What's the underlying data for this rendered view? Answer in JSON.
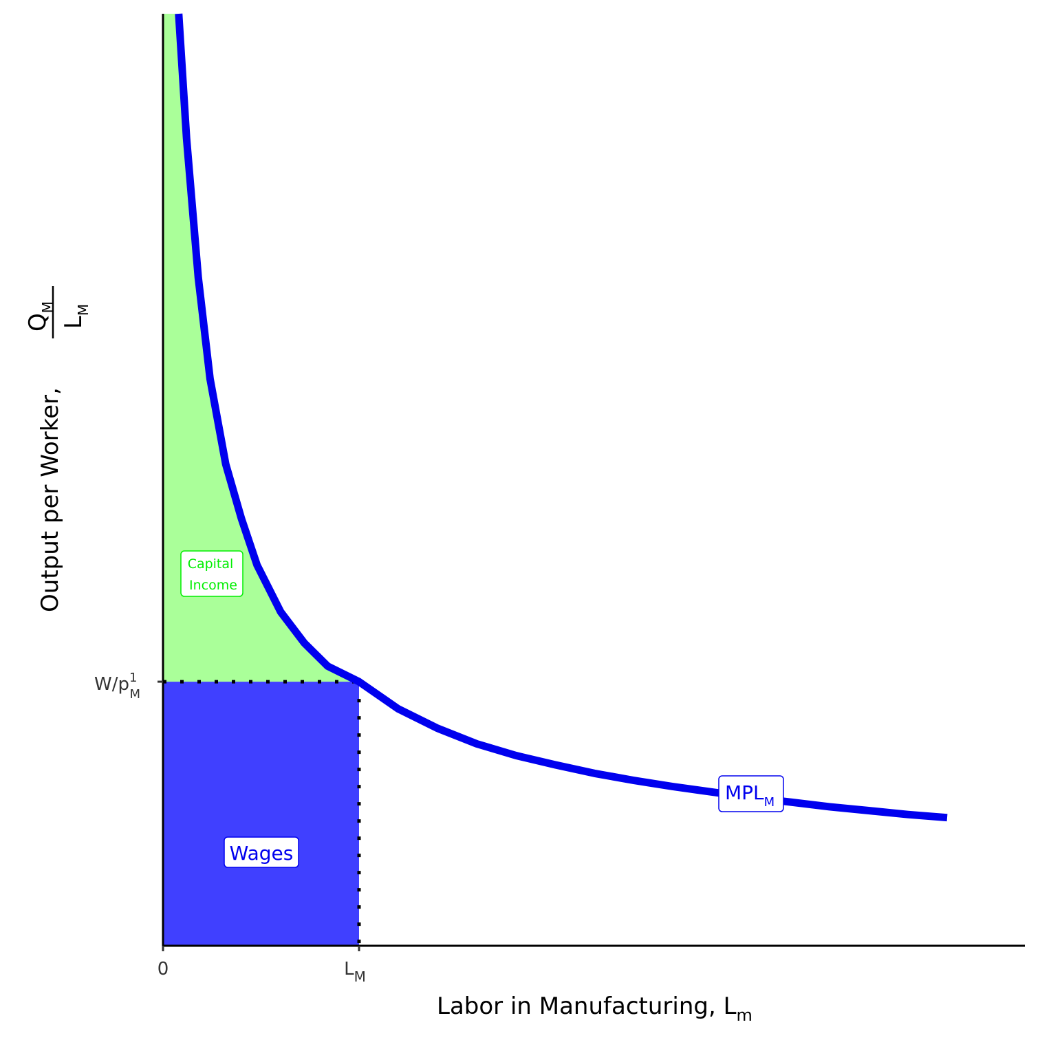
{
  "chart_data": {
    "type": "line",
    "xlabel": {
      "main": "Labor in Manufacturing, L",
      "sub": "m"
    },
    "ylabel": {
      "main": "Output per Worker, ",
      "num_main": "Q",
      "num_sub": "M",
      "den_main": "L",
      "den_sub": "M"
    },
    "xlim": [
      0,
      11
    ],
    "ylim": [
      0,
      12
    ],
    "x_ticks": [
      {
        "value": 0,
        "main": "0",
        "sub": ""
      },
      {
        "value": 2.5,
        "main": "L",
        "sub": "M"
      }
    ],
    "y_ticks": [
      {
        "value": 3.4,
        "main": "W/p",
        "sub": "M",
        "sup": "1"
      }
    ],
    "series": [
      {
        "name": "MPL",
        "name_sub": "M",
        "color": "#0000ee",
        "points": [
          [
            0.2,
            12.0
          ],
          [
            0.3,
            10.4
          ],
          [
            0.45,
            8.6
          ],
          [
            0.6,
            7.3
          ],
          [
            0.8,
            6.2
          ],
          [
            1.0,
            5.5
          ],
          [
            1.2,
            4.9
          ],
          [
            1.5,
            4.3
          ],
          [
            1.8,
            3.9
          ],
          [
            2.1,
            3.6
          ],
          [
            2.5,
            3.4
          ],
          [
            3.0,
            3.05
          ],
          [
            3.5,
            2.8
          ],
          [
            4.0,
            2.6
          ],
          [
            4.5,
            2.45
          ],
          [
            5.0,
            2.33
          ],
          [
            5.5,
            2.22
          ],
          [
            6.0,
            2.13
          ],
          [
            6.5,
            2.05
          ],
          [
            7.0,
            1.98
          ],
          [
            7.5,
            1.91
          ],
          [
            8.0,
            1.85
          ],
          [
            8.5,
            1.79
          ],
          [
            9.0,
            1.74
          ],
          [
            9.5,
            1.69
          ],
          [
            10.0,
            1.65
          ]
        ]
      }
    ],
    "areas": [
      {
        "name": "Capital Income",
        "color": "#aaff99",
        "text_color": "#00ee00",
        "lines": [
          "Capital",
          "Income"
        ]
      },
      {
        "name": "Wages",
        "color": "#4040ff",
        "text_color": "#0000ee",
        "lines": [
          "Wages"
        ]
      }
    ],
    "grid": false
  }
}
